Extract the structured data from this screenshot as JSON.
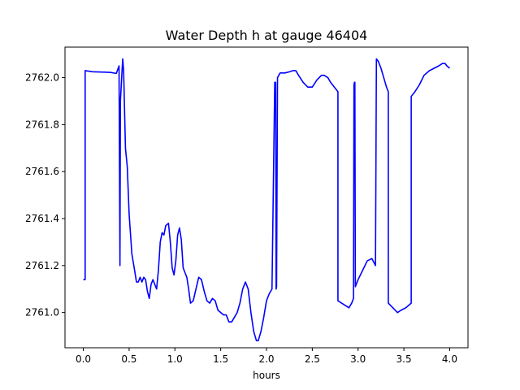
{
  "chart_data": {
    "type": "line",
    "title": "Water Depth h at gauge 46404",
    "xlabel": "hours",
    "ylabel": "",
    "xlim": [
      -0.2,
      4.2
    ],
    "ylim": [
      2760.85,
      2762.13
    ],
    "xticks": [
      0.0,
      0.5,
      1.0,
      1.5,
      2.0,
      2.5,
      3.0,
      3.5,
      4.0
    ],
    "xtick_labels": [
      "0.0",
      "0.5",
      "1.0",
      "1.5",
      "2.0",
      "2.5",
      "3.0",
      "3.5",
      "4.0"
    ],
    "yticks": [
      2761.0,
      2761.2,
      2761.4,
      2761.6,
      2761.8,
      2762.0
    ],
    "ytick_labels": [
      "2761.0",
      "2761.2",
      "2761.4",
      "2761.6",
      "2761.8",
      "2762.0"
    ],
    "grid": false,
    "series": [
      {
        "color": "#0000ff",
        "x": [
          0.0,
          0.02,
          0.02,
          0.1,
          0.2,
          0.3,
          0.36,
          0.39,
          0.4,
          0.405,
          0.43,
          0.44,
          0.46,
          0.48,
          0.5,
          0.53,
          0.56,
          0.58,
          0.6,
          0.62,
          0.64,
          0.66,
          0.68,
          0.7,
          0.72,
          0.74,
          0.76,
          0.78,
          0.8,
          0.82,
          0.84,
          0.86,
          0.88,
          0.9,
          0.93,
          0.95,
          0.97,
          0.99,
          1.01,
          1.03,
          1.05,
          1.07,
          1.09,
          1.11,
          1.13,
          1.15,
          1.17,
          1.2,
          1.23,
          1.26,
          1.29,
          1.32,
          1.35,
          1.38,
          1.41,
          1.44,
          1.47,
          1.5,
          1.53,
          1.56,
          1.59,
          1.62,
          1.65,
          1.68,
          1.71,
          1.74,
          1.77,
          1.8,
          1.83,
          1.86,
          1.89,
          1.91,
          1.94,
          1.97,
          2.0,
          2.03,
          2.06,
          2.09,
          2.1,
          2.105,
          2.11,
          2.12,
          2.135,
          2.14,
          2.15,
          2.2,
          2.25,
          2.29,
          2.32,
          2.35,
          2.4,
          2.45,
          2.5,
          2.55,
          2.6,
          2.63,
          2.67,
          2.7,
          2.74,
          2.78,
          2.78,
          2.82,
          2.86,
          2.9,
          2.93,
          2.95,
          2.955,
          2.96,
          2.965,
          2.97,
          3.0,
          3.05,
          3.1,
          3.15,
          3.19,
          3.2,
          3.22,
          3.25,
          3.28,
          3.31,
          3.33,
          3.33,
          3.38,
          3.43,
          3.47,
          3.52,
          3.58,
          3.58,
          3.62,
          3.67,
          3.72,
          3.78,
          3.83,
          3.88,
          3.92,
          3.95,
          3.97,
          4.0
        ],
        "values": [
          2761.14,
          2761.14,
          2762.03,
          2762.025,
          2762.024,
          2762.022,
          2762.018,
          2762.05,
          2761.2,
          2761.9,
          2762.08,
          2762.03,
          2761.7,
          2761.62,
          2761.42,
          2761.25,
          2761.18,
          2761.13,
          2761.13,
          2761.15,
          2761.13,
          2761.15,
          2761.14,
          2761.09,
          2761.06,
          2761.12,
          2761.14,
          2761.12,
          2761.1,
          2761.18,
          2761.3,
          2761.34,
          2761.33,
          2761.37,
          2761.38,
          2761.3,
          2761.19,
          2761.16,
          2761.22,
          2761.33,
          2761.36,
          2761.31,
          2761.19,
          2761.17,
          2761.15,
          2761.1,
          2761.04,
          2761.05,
          2761.1,
          2761.15,
          2761.14,
          2761.09,
          2761.05,
          2761.04,
          2761.06,
          2761.05,
          2761.01,
          2761.0,
          2760.99,
          2760.99,
          2760.96,
          2760.96,
          2760.98,
          2761.0,
          2761.04,
          2761.1,
          2761.13,
          2761.1,
          2761.0,
          2760.92,
          2760.88,
          2760.88,
          2760.92,
          2760.98,
          2761.05,
          2761.08,
          2761.1,
          2761.98,
          2761.98,
          2761.1,
          2761.11,
          2762.0,
          2762.01,
          2762.015,
          2762.02,
          2762.02,
          2762.025,
          2762.03,
          2762.03,
          2762.01,
          2761.98,
          2761.96,
          2761.96,
          2761.99,
          2762.01,
          2762.01,
          2762.0,
          2761.98,
          2761.96,
          2761.94,
          2761.05,
          2761.04,
          2761.03,
          2761.02,
          2761.04,
          2761.06,
          2761.97,
          2761.98,
          2761.98,
          2761.11,
          2761.14,
          2761.18,
          2761.22,
          2761.23,
          2761.2,
          2762.08,
          2762.07,
          2762.04,
          2762.0,
          2761.96,
          2761.94,
          2761.04,
          2761.02,
          2761.0,
          2761.01,
          2761.02,
          2761.04,
          2761.92,
          2761.94,
          2761.97,
          2762.01,
          2762.03,
          2762.04,
          2762.05,
          2762.06,
          2762.06,
          2762.05,
          2762.04
        ]
      }
    ]
  }
}
